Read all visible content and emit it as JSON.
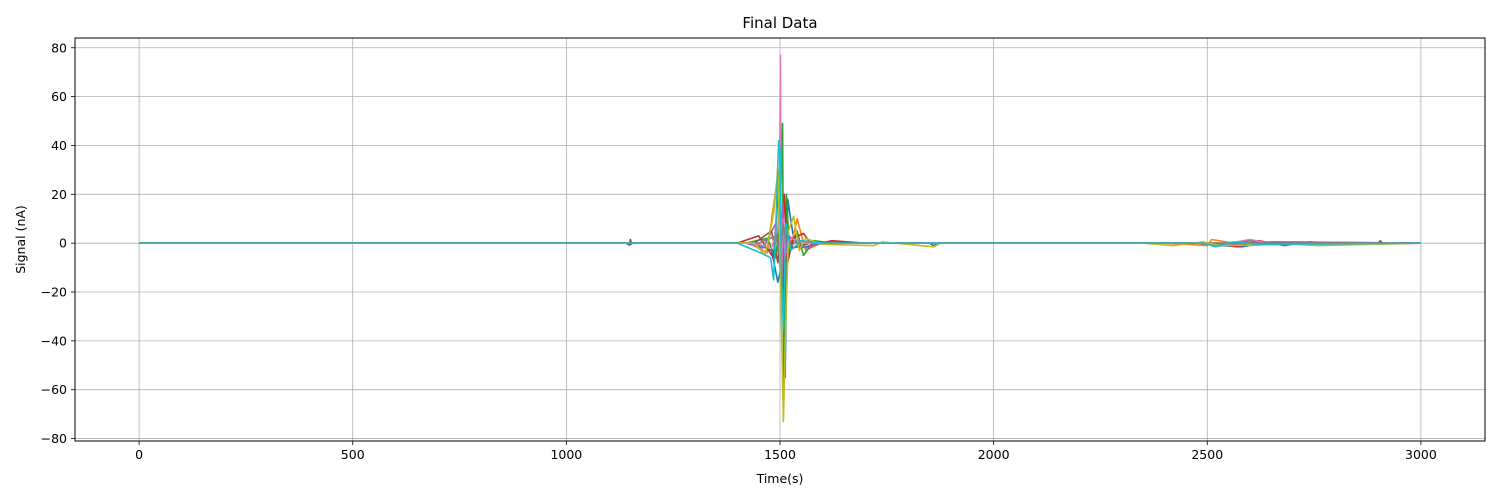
{
  "chart_data": {
    "type": "line",
    "title": "Final Data",
    "xlabel": "Time(s)",
    "ylabel": "Signal (nA)",
    "xlim": [
      -150,
      3150
    ],
    "ylim": [
      -81,
      84
    ],
    "xticks": [
      0,
      500,
      1000,
      1500,
      2000,
      2500,
      3000
    ],
    "yticks": [
      -80,
      -60,
      -40,
      -20,
      0,
      20,
      40,
      60,
      80
    ],
    "grid": true,
    "legend": "none",
    "series": [
      {
        "color": "#1f77b4",
        "points": [
          [
            0,
            0
          ],
          [
            1140,
            0
          ],
          [
            1148,
            -0.8
          ],
          [
            1155,
            0
          ],
          [
            1440,
            0
          ],
          [
            1480,
            -3
          ],
          [
            1495,
            -16
          ],
          [
            1500,
            -12
          ],
          [
            1505,
            8
          ],
          [
            1512,
            -55
          ],
          [
            1518,
            18
          ],
          [
            1530,
            4
          ],
          [
            1545,
            -2
          ],
          [
            1600,
            0
          ],
          [
            1850,
            0
          ],
          [
            1860,
            -1
          ],
          [
            1870,
            0
          ],
          [
            2480,
            0
          ],
          [
            2530,
            -1
          ],
          [
            2580,
            -1.5
          ],
          [
            2650,
            0.5
          ],
          [
            3000,
            0
          ]
        ]
      },
      {
        "color": "#ff7f0e",
        "points": [
          [
            0,
            0
          ],
          [
            1150,
            0
          ],
          [
            1430,
            0
          ],
          [
            1470,
            -4
          ],
          [
            1490,
            22
          ],
          [
            1498,
            30
          ],
          [
            1505,
            -20
          ],
          [
            1512,
            6
          ],
          [
            1520,
            -6
          ],
          [
            1540,
            10
          ],
          [
            1560,
            -3
          ],
          [
            1600,
            0.5
          ],
          [
            1700,
            0
          ],
          [
            2400,
            0
          ],
          [
            2500,
            -1
          ],
          [
            2510,
            1.5
          ],
          [
            2600,
            -1
          ],
          [
            2700,
            0.5
          ],
          [
            3000,
            0
          ]
        ]
      },
      {
        "color": "#2ca02c",
        "points": [
          [
            0,
            0
          ],
          [
            1420,
            0
          ],
          [
            1470,
            2
          ],
          [
            1490,
            -6
          ],
          [
            1500,
            10
          ],
          [
            1506,
            49
          ],
          [
            1509,
            -58
          ],
          [
            1515,
            20
          ],
          [
            1522,
            -4
          ],
          [
            1540,
            5
          ],
          [
            1555,
            -5
          ],
          [
            1580,
            1
          ],
          [
            1620,
            0
          ],
          [
            2560,
            0
          ],
          [
            2600,
            1
          ],
          [
            2650,
            -0.5
          ],
          [
            3000,
            0
          ]
        ]
      },
      {
        "color": "#d62728",
        "points": [
          [
            0,
            0
          ],
          [
            1148,
            0
          ],
          [
            1150,
            1.5
          ],
          [
            1152,
            0
          ],
          [
            1400,
            0
          ],
          [
            1450,
            3
          ],
          [
            1485,
            -6
          ],
          [
            1496,
            22
          ],
          [
            1503,
            -10
          ],
          [
            1510,
            20
          ],
          [
            1518,
            -8
          ],
          [
            1530,
            2
          ],
          [
            1555,
            4
          ],
          [
            1575,
            -1
          ],
          [
            1620,
            1
          ],
          [
            1700,
            0
          ],
          [
            2520,
            0
          ],
          [
            2570,
            -1.5
          ],
          [
            2620,
            1
          ],
          [
            2680,
            -1
          ],
          [
            2740,
            0.5
          ],
          [
            2800,
            -0.5
          ],
          [
            3000,
            0
          ]
        ]
      },
      {
        "color": "#9467bd",
        "points": [
          [
            0,
            0
          ],
          [
            1420,
            0
          ],
          [
            1460,
            -2
          ],
          [
            1490,
            8
          ],
          [
            1500,
            -10
          ],
          [
            1507,
            16
          ],
          [
            1512,
            -6
          ],
          [
            1520,
            3
          ],
          [
            1560,
            -2
          ],
          [
            1600,
            0
          ],
          [
            2500,
            0
          ],
          [
            2560,
            -0.5
          ],
          [
            2620,
            0.5
          ],
          [
            3000,
            0
          ]
        ]
      },
      {
        "color": "#8c564b",
        "points": [
          [
            0,
            0
          ],
          [
            1440,
            0
          ],
          [
            1480,
            5
          ],
          [
            1495,
            -8
          ],
          [
            1502,
            14
          ],
          [
            1508,
            -20
          ],
          [
            1515,
            6
          ],
          [
            1530,
            -2
          ],
          [
            1580,
            0.5
          ],
          [
            1650,
            0
          ],
          [
            2900,
            0
          ],
          [
            2905,
            1
          ],
          [
            2910,
            0
          ],
          [
            3000,
            0
          ]
        ]
      },
      {
        "color": "#e377c2",
        "points": [
          [
            0,
            0
          ],
          [
            1440,
            0
          ],
          [
            1480,
            -2
          ],
          [
            1495,
            6
          ],
          [
            1499,
            20
          ],
          [
            1501,
            77
          ],
          [
            1503,
            -30
          ],
          [
            1506,
            10
          ],
          [
            1512,
            -5
          ],
          [
            1525,
            2
          ],
          [
            1560,
            0
          ],
          [
            2550,
            0
          ],
          [
            2600,
            1.5
          ],
          [
            2640,
            0
          ],
          [
            3000,
            0
          ]
        ]
      },
      {
        "color": "#7f7f7f",
        "points": [
          [
            0,
            0
          ],
          [
            1450,
            0
          ],
          [
            1490,
            3
          ],
          [
            1500,
            -5
          ],
          [
            1508,
            8
          ],
          [
            1515,
            -3
          ],
          [
            1540,
            1
          ],
          [
            1600,
            0
          ],
          [
            3000,
            0
          ]
        ]
      },
      {
        "color": "#bcbd22",
        "points": [
          [
            0,
            0
          ],
          [
            1440,
            0
          ],
          [
            1465,
            -5
          ],
          [
            1485,
            12
          ],
          [
            1495,
            30
          ],
          [
            1502,
            -20
          ],
          [
            1508,
            -73
          ],
          [
            1513,
            -35
          ],
          [
            1520,
            5
          ],
          [
            1532,
            11
          ],
          [
            1545,
            -3
          ],
          [
            1560,
            2
          ],
          [
            1600,
            -0.5
          ],
          [
            1720,
            -1
          ],
          [
            1740,
            0.5
          ],
          [
            1860,
            -1.5
          ],
          [
            1875,
            0
          ],
          [
            2350,
            0
          ],
          [
            2420,
            -1
          ],
          [
            2490,
            0.5
          ],
          [
            2530,
            -1
          ],
          [
            2700,
            -0.5
          ],
          [
            2760,
            -1
          ],
          [
            3000,
            0
          ]
        ]
      },
      {
        "color": "#17becf",
        "points": [
          [
            0,
            0
          ],
          [
            1400,
            0
          ],
          [
            1455,
            -4
          ],
          [
            1478,
            -6
          ],
          [
            1485,
            -15
          ],
          [
            1490,
            5
          ],
          [
            1494,
            28
          ],
          [
            1497,
            42
          ],
          [
            1500,
            38
          ],
          [
            1503,
            -10
          ],
          [
            1508,
            -35
          ],
          [
            1514,
            8
          ],
          [
            1525,
            -3
          ],
          [
            1550,
            1
          ],
          [
            1600,
            0
          ],
          [
            2490,
            0
          ],
          [
            2520,
            -1.5
          ],
          [
            2560,
            0.5
          ],
          [
            2620,
            -0.5
          ],
          [
            3000,
            0
          ]
        ]
      }
    ]
  }
}
